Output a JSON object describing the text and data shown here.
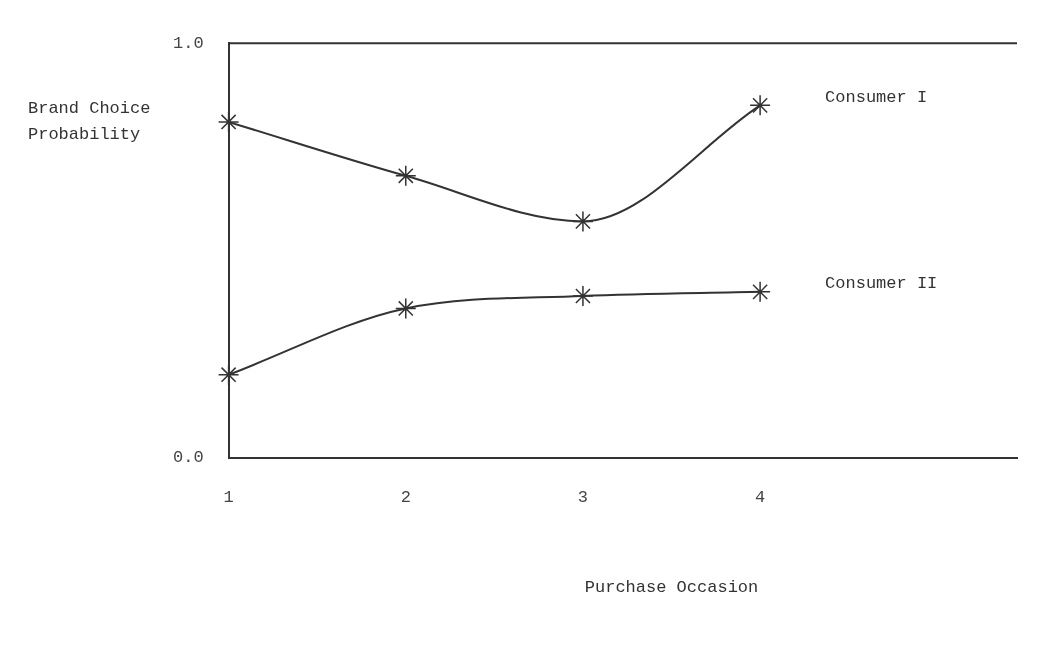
{
  "chart_data": {
    "type": "line",
    "ylabel": "Brand Choice Probability",
    "xlabel": "Purchase Occasion",
    "x": [
      1,
      2,
      3,
      4
    ],
    "xlim": [
      1,
      5.45
    ],
    "xticks": [
      1,
      2,
      3,
      4
    ],
    "ylim": [
      0,
      1
    ],
    "yticks": [
      {
        "value": 0,
        "label": "0.0"
      },
      {
        "value": 1,
        "label": "1.0"
      }
    ],
    "series": [
      {
        "name": "Consumer I",
        "color": "#333333",
        "values": [
          0.81,
          0.68,
          0.57,
          0.85
        ]
      },
      {
        "name": "Consumer II",
        "color": "#333333",
        "values": [
          0.2,
          0.36,
          0.39,
          0.4
        ]
      }
    ],
    "marker": "cross",
    "line_style": "solid",
    "legend": false
  }
}
